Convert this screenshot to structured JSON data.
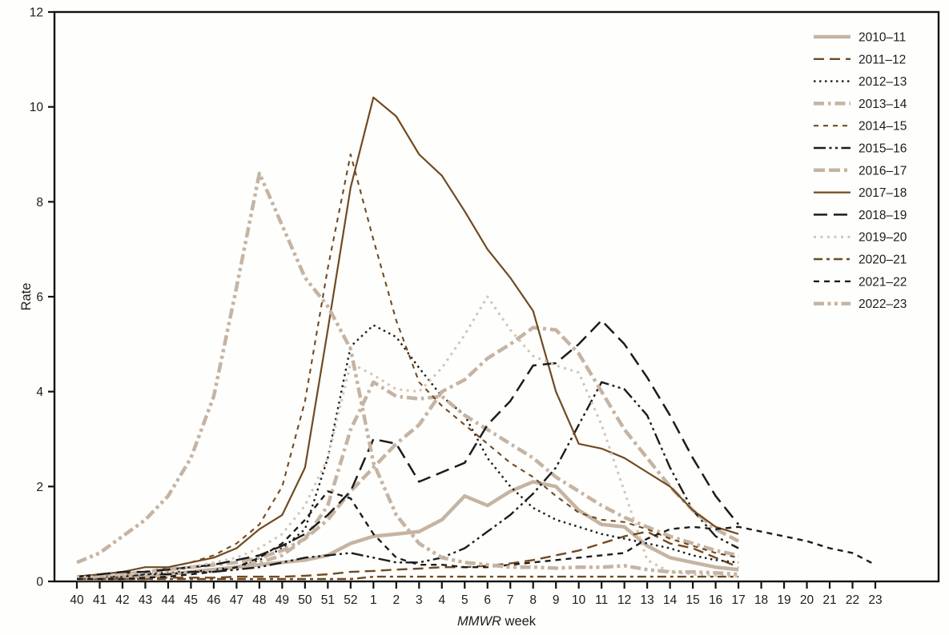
{
  "chart_data": {
    "type": "line",
    "title": "",
    "xlabel_italic": "MMWR",
    "xlabel_rest": " week",
    "ylabel": "Rate",
    "ylim": [
      0,
      12
    ],
    "yticks": [
      0,
      2,
      4,
      6,
      8,
      10,
      12
    ],
    "grid": false,
    "legend_position": "top-right",
    "categories": [
      "40",
      "41",
      "42",
      "43",
      "44",
      "45",
      "46",
      "47",
      "48",
      "49",
      "50",
      "51",
      "52",
      "1",
      "2",
      "3",
      "4",
      "5",
      "6",
      "7",
      "8",
      "9",
      "10",
      "11",
      "12",
      "13",
      "14",
      "15",
      "16",
      "17",
      "18",
      "19",
      "20",
      "21",
      "22",
      "23"
    ],
    "colors": {
      "tan": "#c5b4a3",
      "light_tan": "#d2c5b7",
      "brown": "#714a21",
      "black": "#1c1c1c",
      "axis": "#111111"
    },
    "series": [
      {
        "name": "2010–11",
        "color": "#c5b4a3",
        "width": 4.5,
        "dash": "",
        "values": [
          0.05,
          0.05,
          0.1,
          0.1,
          0.15,
          0.2,
          0.25,
          0.3,
          0.35,
          0.4,
          0.45,
          0.55,
          0.8,
          0.95,
          1.0,
          1.05,
          1.3,
          1.8,
          1.6,
          1.9,
          2.1,
          2.0,
          1.5,
          1.2,
          1.15,
          0.75,
          0.5,
          0.4,
          0.3,
          0.25,
          null,
          null,
          null,
          null,
          null,
          null
        ]
      },
      {
        "name": "2011–12",
        "color": "#714a21",
        "width": 2.4,
        "dash": "13 7",
        "values": [
          0.05,
          0.05,
          0.05,
          0.05,
          0.08,
          0.08,
          0.08,
          0.1,
          0.1,
          0.1,
          0.12,
          0.15,
          0.2,
          0.22,
          0.25,
          0.27,
          0.3,
          0.3,
          0.33,
          0.38,
          0.45,
          0.55,
          0.65,
          0.8,
          0.95,
          1.05,
          0.8,
          0.7,
          0.5,
          0.3,
          null,
          null,
          null,
          null,
          null,
          null
        ]
      },
      {
        "name": "2012–13",
        "color": "#1c1c1c",
        "width": 2.4,
        "dash": "2.5 4.5",
        "values": [
          0.1,
          0.1,
          0.1,
          0.15,
          0.2,
          0.2,
          0.25,
          0.3,
          0.45,
          0.7,
          1.1,
          2.6,
          4.95,
          5.4,
          5.15,
          4.5,
          3.9,
          3.5,
          2.6,
          2.0,
          1.55,
          1.3,
          1.15,
          1.0,
          0.9,
          0.8,
          0.7,
          0.55,
          0.45,
          0.4,
          null,
          null,
          null,
          null,
          null,
          null
        ]
      },
      {
        "name": "2013–14",
        "color": "#c5b4a3",
        "width": 4.5,
        "dash": "13 5 3.5 5",
        "values": [
          0.05,
          0.1,
          0.1,
          0.1,
          0.15,
          0.2,
          0.25,
          0.3,
          0.4,
          0.55,
          0.9,
          1.6,
          3.2,
          4.2,
          3.9,
          3.85,
          3.9,
          3.5,
          3.2,
          2.9,
          2.6,
          2.2,
          1.9,
          1.6,
          1.35,
          1.15,
          0.95,
          0.8,
          0.65,
          0.55,
          null,
          null,
          null,
          null,
          null,
          null
        ]
      },
      {
        "name": "2014–15",
        "color": "#714a21",
        "width": 2.1,
        "dash": "6 6",
        "values": [
          0.1,
          0.1,
          0.15,
          0.2,
          0.3,
          0.4,
          0.55,
          0.8,
          1.2,
          2.0,
          3.8,
          6.6,
          9.0,
          7.2,
          5.5,
          4.2,
          3.7,
          3.3,
          2.9,
          2.5,
          2.2,
          1.8,
          1.45,
          1.3,
          1.25,
          1.1,
          0.9,
          0.75,
          0.6,
          0.5,
          null,
          null,
          null,
          null,
          null,
          null
        ]
      },
      {
        "name": "2015–16",
        "color": "#1c1c1c",
        "width": 2.4,
        "dash": "15 4.5 3 4.5 3 4.5",
        "values": [
          0.1,
          0.1,
          0.1,
          0.15,
          0.15,
          0.2,
          0.2,
          0.25,
          0.3,
          0.4,
          0.5,
          0.55,
          0.6,
          0.5,
          0.4,
          0.4,
          0.5,
          0.7,
          1.05,
          1.4,
          1.85,
          2.4,
          3.3,
          4.2,
          4.05,
          3.5,
          2.4,
          1.5,
          0.95,
          0.7,
          null,
          null,
          null,
          null,
          null,
          null
        ]
      },
      {
        "name": "2016–17",
        "color": "#c5b4a3",
        "width": 4.5,
        "dash": "14 5 14 5 4 5",
        "values": [
          0.1,
          0.1,
          0.15,
          0.2,
          0.25,
          0.3,
          0.35,
          0.4,
          0.5,
          0.65,
          0.9,
          1.3,
          1.9,
          2.4,
          2.9,
          3.3,
          4.0,
          4.25,
          4.7,
          5.0,
          5.35,
          5.3,
          4.8,
          4.0,
          3.2,
          2.6,
          2.0,
          1.5,
          1.1,
          0.85,
          null,
          null,
          null,
          null,
          null,
          null
        ]
      },
      {
        "name": "2017–18",
        "color": "#714a21",
        "width": 2.2,
        "dash": "",
        "values": [
          0.1,
          0.15,
          0.2,
          0.3,
          0.3,
          0.4,
          0.5,
          0.7,
          1.1,
          1.4,
          2.4,
          5.3,
          8.3,
          10.2,
          9.8,
          9.0,
          8.55,
          7.8,
          7.0,
          6.4,
          5.7,
          4.0,
          2.9,
          2.8,
          2.6,
          2.3,
          2.0,
          1.5,
          1.15,
          1.0,
          null,
          null,
          null,
          null,
          null,
          null
        ]
      },
      {
        "name": "2018–19",
        "color": "#1c1c1c",
        "width": 2.5,
        "dash": "17 8",
        "values": [
          0.1,
          0.15,
          0.2,
          0.2,
          0.25,
          0.3,
          0.35,
          0.45,
          0.55,
          0.75,
          1.0,
          1.4,
          1.9,
          3.0,
          2.9,
          2.1,
          2.3,
          2.5,
          3.3,
          3.8,
          4.55,
          4.6,
          5.0,
          5.5,
          5.0,
          4.3,
          3.5,
          2.6,
          1.8,
          1.2,
          null,
          null,
          null,
          null,
          null,
          null
        ]
      },
      {
        "name": "2019–20",
        "color": "#d2c5b7",
        "width": 3.0,
        "dash": "3 5.5",
        "values": [
          0.1,
          0.1,
          0.15,
          0.15,
          0.2,
          0.3,
          0.4,
          0.5,
          0.7,
          1.0,
          1.6,
          2.6,
          4.6,
          4.35,
          4.05,
          4.0,
          4.5,
          5.2,
          6.0,
          5.3,
          4.75,
          4.55,
          4.4,
          3.3,
          1.9,
          0.45,
          0.2,
          0.15,
          0.12,
          0.1,
          null,
          null,
          null,
          null,
          null,
          null
        ]
      },
      {
        "name": "2020–21",
        "color": "#714a21",
        "width": 2.4,
        "dash": "11 5 4 5",
        "values": [
          0.05,
          0.05,
          0.05,
          0.05,
          0.05,
          0.05,
          0.05,
          0.05,
          0.05,
          0.05,
          0.05,
          0.05,
          0.05,
          0.1,
          0.1,
          0.1,
          0.1,
          0.1,
          0.1,
          0.1,
          0.1,
          0.1,
          0.1,
          0.1,
          0.1,
          0.1,
          0.1,
          0.1,
          0.1,
          0.1,
          null,
          null,
          null,
          null,
          null,
          null
        ]
      },
      {
        "name": "2021–22",
        "color": "#1c1c1c",
        "width": 2.4,
        "dash": "7 6",
        "values": [
          0.05,
          0.05,
          0.05,
          0.08,
          0.1,
          0.15,
          0.2,
          0.3,
          0.5,
          0.8,
          1.3,
          1.9,
          1.75,
          1.0,
          0.5,
          0.35,
          0.35,
          0.3,
          0.3,
          0.35,
          0.4,
          0.45,
          0.5,
          0.55,
          0.6,
          0.9,
          1.1,
          1.15,
          1.1,
          1.15,
          1.05,
          0.95,
          0.85,
          0.7,
          0.6,
          0.35
        ]
      },
      {
        "name": "2022–23",
        "color": "#c5b4a3",
        "width": 4.5,
        "dash": "13 4.5 4 4.5 4 4.5",
        "values": [
          0.4,
          0.6,
          0.95,
          1.3,
          1.8,
          2.6,
          3.9,
          6.2,
          8.6,
          7.5,
          6.4,
          5.8,
          4.9,
          2.5,
          1.4,
          0.8,
          0.5,
          0.4,
          0.35,
          0.3,
          0.3,
          0.28,
          0.3,
          0.3,
          0.33,
          0.25,
          0.2,
          0.2,
          0.18,
          0.15,
          null,
          null,
          null,
          null,
          null,
          null
        ]
      }
    ]
  }
}
